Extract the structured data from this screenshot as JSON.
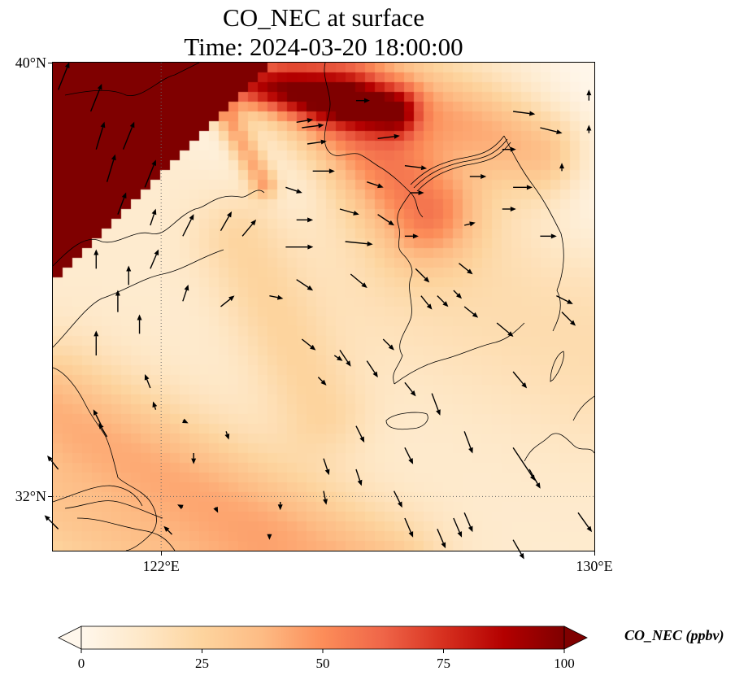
{
  "figure": {
    "title_line1": "CO_NEC at surface",
    "title_line2": "Time: 2024-03-20 18:00:00"
  },
  "map": {
    "variable": "CO_NEC",
    "level": "surface",
    "extent": {
      "lon_min": 120,
      "lon_max": 130,
      "lat_min": 31,
      "lat_max": 40
    },
    "gridlines": {
      "lons": [
        122
      ],
      "lats": [
        32
      ],
      "style": "dotted"
    },
    "yticks": [
      {
        "lat": 40,
        "label": "40°N"
      },
      {
        "lat": 32,
        "label": "32°N"
      }
    ],
    "xticks": [
      {
        "lon": 122,
        "label": "122°E"
      },
      {
        "lon": 130,
        "label": "130°E"
      }
    ],
    "field_description": "CO_NEC concentration; saturated (>100 ppbv) over Liaoning/Hebei NW corner, moderate band over Korean west coast/Yellow Sea north, low values over Korea interior and central Yellow Sea, enhanced band along SW toward Shanghai",
    "colormap": "OrRd",
    "wind_vectors": [
      {
        "lon": 120.1,
        "lat": 39.5,
        "u": 0.4,
        "v": 1.0
      },
      {
        "lon": 120.7,
        "lat": 39.1,
        "u": 0.4,
        "v": 1.0
      },
      {
        "lon": 120.8,
        "lat": 38.4,
        "u": 0.3,
        "v": 1.0
      },
      {
        "lon": 121.3,
        "lat": 38.4,
        "u": 0.4,
        "v": 1.0
      },
      {
        "lon": 121.0,
        "lat": 37.8,
        "u": 0.3,
        "v": 1.0
      },
      {
        "lon": 121.7,
        "lat": 37.7,
        "u": 0.4,
        "v": 1.0
      },
      {
        "lon": 121.2,
        "lat": 37.2,
        "u": 0.3,
        "v": 0.8
      },
      {
        "lon": 121.8,
        "lat": 37.0,
        "u": 0.2,
        "v": 0.6
      },
      {
        "lon": 121.8,
        "lat": 36.2,
        "u": 0.3,
        "v": 0.7
      },
      {
        "lon": 122.4,
        "lat": 36.8,
        "u": 0.4,
        "v": 0.8
      },
      {
        "lon": 123.1,
        "lat": 36.9,
        "u": 0.4,
        "v": 0.7
      },
      {
        "lon": 123.5,
        "lat": 36.8,
        "u": 0.5,
        "v": 0.6
      },
      {
        "lon": 124.3,
        "lat": 36.6,
        "u": 1.0,
        "v": 0.0
      },
      {
        "lon": 120.8,
        "lat": 36.2,
        "u": 0.0,
        "v": 0.7
      },
      {
        "lon": 121.4,
        "lat": 35.9,
        "u": 0.0,
        "v": 0.7
      },
      {
        "lon": 121.2,
        "lat": 35.4,
        "u": 0.0,
        "v": 0.8
      },
      {
        "lon": 120.8,
        "lat": 34.6,
        "u": 0.0,
        "v": 0.9
      },
      {
        "lon": 121.6,
        "lat": 35.0,
        "u": 0.0,
        "v": 0.7
      },
      {
        "lon": 122.4,
        "lat": 35.6,
        "u": 0.2,
        "v": 0.6
      },
      {
        "lon": 123.1,
        "lat": 35.5,
        "u": 0.5,
        "v": 0.4
      },
      {
        "lon": 124.0,
        "lat": 35.7,
        "u": 0.5,
        "v": -0.1
      },
      {
        "lon": 124.5,
        "lat": 36.0,
        "u": 0.6,
        "v": -0.4
      },
      {
        "lon": 125.4,
        "lat": 36.7,
        "u": 1.0,
        "v": -0.1
      },
      {
        "lon": 125.5,
        "lat": 36.1,
        "u": 0.6,
        "v": -0.5
      },
      {
        "lon": 124.6,
        "lat": 34.9,
        "u": 0.5,
        "v": -0.4
      },
      {
        "lon": 125.3,
        "lat": 34.7,
        "u": 0.4,
        "v": -0.6
      },
      {
        "lon": 125.8,
        "lat": 34.5,
        "u": 0.4,
        "v": -0.6
      },
      {
        "lon": 126.1,
        "lat": 34.9,
        "u": 0.4,
        "v": -0.4
      },
      {
        "lon": 124.9,
        "lat": 34.2,
        "u": 0.3,
        "v": -0.3
      },
      {
        "lon": 125.2,
        "lat": 34.6,
        "u": 0.3,
        "v": -0.2
      },
      {
        "lon": 121.8,
        "lat": 34.0,
        "u": -0.2,
        "v": 0.5
      },
      {
        "lon": 120.9,
        "lat": 33.3,
        "u": -0.3,
        "v": 0.6
      },
      {
        "lon": 121.0,
        "lat": 33.1,
        "u": -0.3,
        "v": 0.5
      },
      {
        "lon": 121.9,
        "lat": 33.6,
        "u": -0.1,
        "v": 0.3
      },
      {
        "lon": 122.4,
        "lat": 33.4,
        "u": 0.2,
        "v": -0.1
      },
      {
        "lon": 123.2,
        "lat": 33.2,
        "u": 0.1,
        "v": -0.3
      },
      {
        "lon": 122.6,
        "lat": 32.8,
        "u": 0.0,
        "v": -0.4
      },
      {
        "lon": 120.1,
        "lat": 32.5,
        "u": -0.4,
        "v": 0.5
      },
      {
        "lon": 120.1,
        "lat": 31.4,
        "u": -0.5,
        "v": 0.5
      },
      {
        "lon": 122.2,
        "lat": 31.3,
        "u": -0.3,
        "v": 0.3
      },
      {
        "lon": 122.4,
        "lat": 31.8,
        "u": -0.2,
        "v": 0.1
      },
      {
        "lon": 123.0,
        "lat": 31.8,
        "u": 0.1,
        "v": -0.2
      },
      {
        "lon": 124.2,
        "lat": 31.9,
        "u": 0.0,
        "v": -0.3
      },
      {
        "lon": 124.0,
        "lat": 31.3,
        "u": 0.0,
        "v": -0.2
      },
      {
        "lon": 125.0,
        "lat": 32.1,
        "u": 0.1,
        "v": -0.5
      },
      {
        "lon": 126.3,
        "lat": 32.1,
        "u": 0.3,
        "v": -0.6
      },
      {
        "lon": 126.5,
        "lat": 31.6,
        "u": 0.3,
        "v": -0.7
      },
      {
        "lon": 125.0,
        "lat": 32.7,
        "u": 0.2,
        "v": -0.6
      },
      {
        "lon": 125.6,
        "lat": 32.5,
        "u": 0.2,
        "v": -0.6
      },
      {
        "lon": 125.6,
        "lat": 33.3,
        "u": 0.3,
        "v": -0.6
      },
      {
        "lon": 126.5,
        "lat": 32.9,
        "u": 0.3,
        "v": -0.6
      },
      {
        "lon": 127.1,
        "lat": 31.4,
        "u": 0.3,
        "v": -0.7
      },
      {
        "lon": 127.4,
        "lat": 31.6,
        "u": 0.3,
        "v": -0.7
      },
      {
        "lon": 127.6,
        "lat": 31.7,
        "u": 0.3,
        "v": -0.7
      },
      {
        "lon": 128.5,
        "lat": 31.2,
        "u": 0.4,
        "v": -0.7
      },
      {
        "lon": 127.6,
        "lat": 33.2,
        "u": 0.3,
        "v": -0.8
      },
      {
        "lon": 127.0,
        "lat": 33.9,
        "u": 0.3,
        "v": -0.8
      },
      {
        "lon": 128.5,
        "lat": 32.9,
        "u": 0.8,
        "v": -1.2
      },
      {
        "lon": 128.8,
        "lat": 32.5,
        "u": 0.4,
        "v": -0.7
      },
      {
        "lon": 129.7,
        "lat": 31.7,
        "u": 0.5,
        "v": -0.7
      },
      {
        "lon": 126.5,
        "lat": 34.1,
        "u": 0.4,
        "v": -0.5
      },
      {
        "lon": 128.5,
        "lat": 34.3,
        "u": 0.5,
        "v": -0.6
      },
      {
        "lon": 129.4,
        "lat": 35.4,
        "u": 0.5,
        "v": -0.5
      },
      {
        "lon": 128.2,
        "lat": 35.2,
        "u": 0.6,
        "v": -0.5
      },
      {
        "lon": 129.3,
        "lat": 35.7,
        "u": 0.6,
        "v": -0.3
      },
      {
        "lon": 127.6,
        "lat": 35.5,
        "u": 0.5,
        "v": -0.4
      },
      {
        "lon": 126.8,
        "lat": 35.7,
        "u": 0.4,
        "v": -0.5
      },
      {
        "lon": 126.7,
        "lat": 36.2,
        "u": 0.5,
        "v": -0.5
      },
      {
        "lon": 127.1,
        "lat": 35.7,
        "u": 0.4,
        "v": -0.4
      },
      {
        "lon": 127.4,
        "lat": 35.8,
        "u": 0.3,
        "v": -0.3
      },
      {
        "lon": 127.5,
        "lat": 36.3,
        "u": 0.5,
        "v": -0.4
      },
      {
        "lon": 126.5,
        "lat": 36.8,
        "u": 0.5,
        "v": 0.0
      },
      {
        "lon": 127.6,
        "lat": 37.0,
        "u": 0.4,
        "v": 0.1
      },
      {
        "lon": 128.3,
        "lat": 37.3,
        "u": 0.5,
        "v": 0.0
      },
      {
        "lon": 129.0,
        "lat": 36.8,
        "u": 0.6,
        "v": 0.0
      },
      {
        "lon": 128.5,
        "lat": 37.7,
        "u": 0.7,
        "v": 0.0
      },
      {
        "lon": 128.3,
        "lat": 38.4,
        "u": 0.5,
        "v": 0.0
      },
      {
        "lon": 129.4,
        "lat": 38.0,
        "u": 0.0,
        "v": 0.3
      },
      {
        "lon": 129.0,
        "lat": 38.8,
        "u": 0.8,
        "v": -0.2
      },
      {
        "lon": 128.5,
        "lat": 39.1,
        "u": 0.8,
        "v": -0.1
      },
      {
        "lon": 129.9,
        "lat": 38.7,
        "u": 0.0,
        "v": 0.3
      },
      {
        "lon": 129.9,
        "lat": 39.3,
        "u": 0.0,
        "v": 0.4
      },
      {
        "lon": 126.5,
        "lat": 38.1,
        "u": 0.8,
        "v": -0.1
      },
      {
        "lon": 126.0,
        "lat": 38.6,
        "u": 0.8,
        "v": 0.1
      },
      {
        "lon": 124.8,
        "lat": 38.0,
        "u": 0.8,
        "v": 0.0
      },
      {
        "lon": 125.8,
        "lat": 37.8,
        "u": 0.6,
        "v": -0.2
      },
      {
        "lon": 124.6,
        "lat": 38.8,
        "u": 0.8,
        "v": 0.1
      },
      {
        "lon": 124.7,
        "lat": 38.5,
        "u": 0.7,
        "v": 0.1
      },
      {
        "lon": 124.5,
        "lat": 38.9,
        "u": 0.6,
        "v": 0.1
      },
      {
        "lon": 125.6,
        "lat": 39.3,
        "u": 0.5,
        "v": 0.0
      },
      {
        "lon": 124.5,
        "lat": 37.1,
        "u": 0.6,
        "v": 0.0
      },
      {
        "lon": 124.3,
        "lat": 37.7,
        "u": 0.6,
        "v": -0.2
      },
      {
        "lon": 125.3,
        "lat": 37.3,
        "u": 0.7,
        "v": -0.2
      },
      {
        "lon": 126.0,
        "lat": 37.2,
        "u": 0.6,
        "v": -0.4
      },
      {
        "lon": 126.6,
        "lat": 37.6,
        "u": 0.5,
        "v": 0.0
      },
      {
        "lon": 127.7,
        "lat": 37.9,
        "u": 0.6,
        "v": 0.0
      }
    ]
  },
  "colorbar": {
    "label": "CO_NEC (ppbv)",
    "vmin": 0,
    "vmax": 100,
    "extend": "both",
    "ticks": [
      {
        "value": 0,
        "label": "0"
      },
      {
        "value": 25,
        "label": "25"
      },
      {
        "value": 50,
        "label": "50"
      },
      {
        "value": 75,
        "label": "75"
      },
      {
        "value": 100,
        "label": "100"
      }
    ],
    "colors": [
      "#fff7ec",
      "#fee8c8",
      "#fdd49e",
      "#fdbb84",
      "#fc8d59",
      "#ef6548",
      "#d7301f",
      "#b30000",
      "#7f0000"
    ]
  }
}
